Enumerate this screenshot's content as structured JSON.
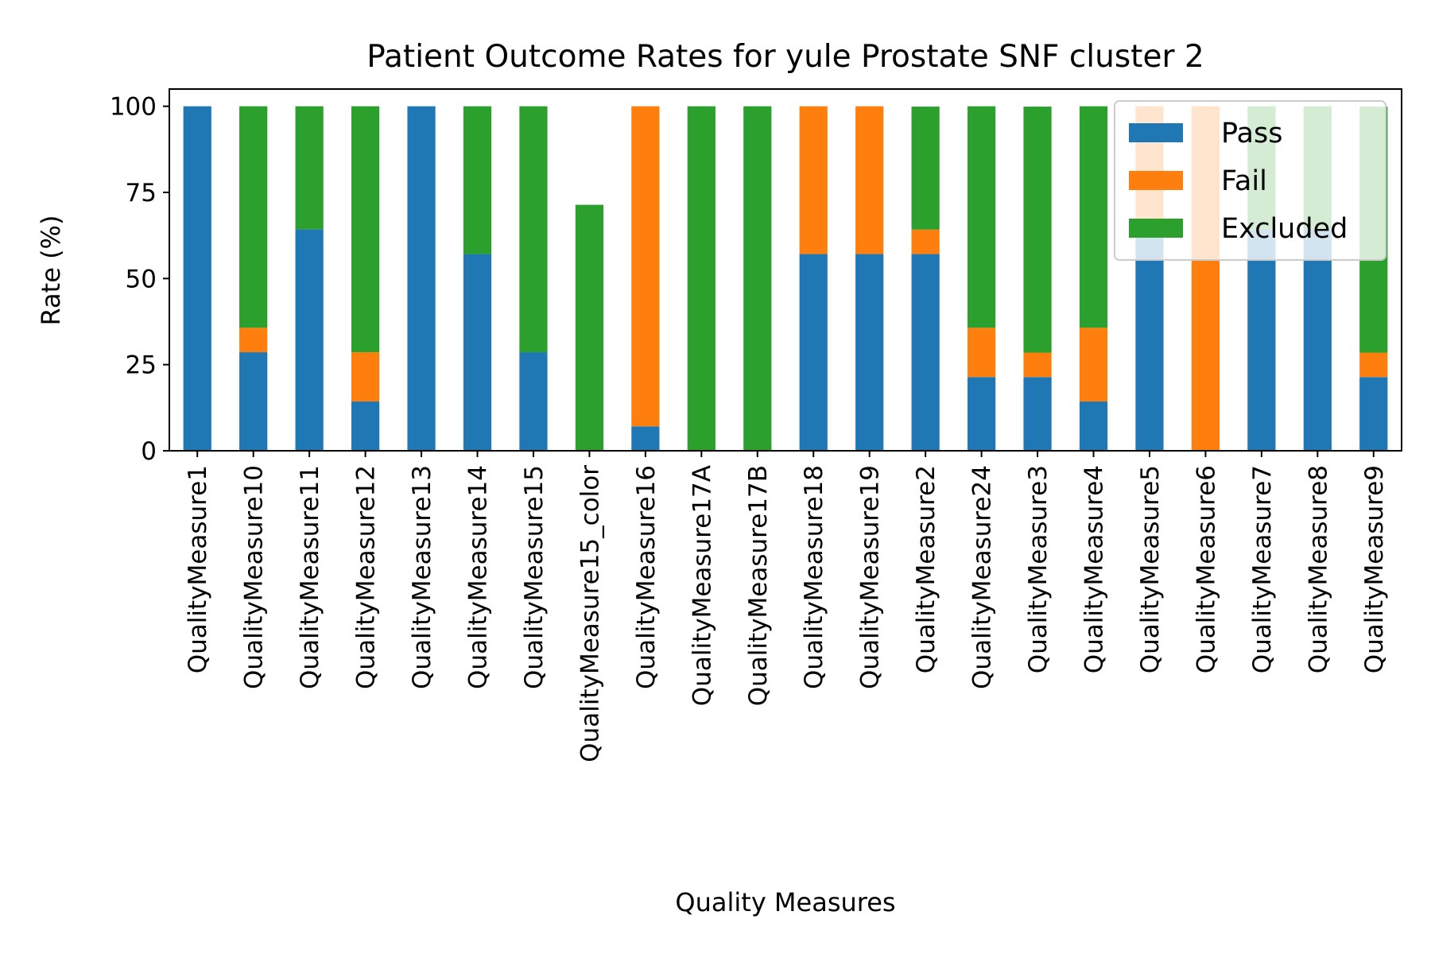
{
  "chart_data": {
    "type": "bar",
    "stacked": true,
    "title": "Patient Outcome Rates for yule Prostate SNF cluster 2",
    "xlabel": "Quality Measures",
    "ylabel": "Rate (%)",
    "ylim": [
      0,
      105
    ],
    "yticks": [
      0,
      25,
      50,
      75,
      100
    ],
    "grid": false,
    "legend_position": "top-right",
    "categories": [
      "QualityMeasure1",
      "QualityMeasure10",
      "QualityMeasure11",
      "QualityMeasure12",
      "QualityMeasure13",
      "QualityMeasure14",
      "QualityMeasure15",
      "QualityMeasure15_color",
      "QualityMeasure16",
      "QualityMeasure17A",
      "QualityMeasure17B",
      "QualityMeasure18",
      "QualityMeasure19",
      "QualityMeasure2",
      "QualityMeasure24",
      "QualityMeasure3",
      "QualityMeasure4",
      "QualityMeasure5",
      "QualityMeasure6",
      "QualityMeasure7",
      "QualityMeasure8",
      "QualityMeasure9"
    ],
    "series": [
      {
        "name": "Pass",
        "color": "#1f77b4",
        "values": [
          100,
          28.6,
          64.3,
          14.3,
          100,
          57.1,
          28.6,
          0,
          7.1,
          0,
          0,
          57.1,
          57.1,
          57.1,
          21.4,
          21.4,
          14.3,
          64.3,
          0,
          64.3,
          64.3,
          21.4
        ]
      },
      {
        "name": "Fail",
        "color": "#ff7f0e",
        "values": [
          0,
          7.1,
          0,
          14.3,
          0,
          0,
          0,
          0,
          92.9,
          0,
          0,
          42.9,
          42.9,
          7.1,
          14.3,
          7.1,
          21.4,
          35.7,
          100,
          0,
          0,
          7.1
        ]
      },
      {
        "name": "Excluded",
        "color": "#2ca02c",
        "values": [
          0,
          64.3,
          35.7,
          71.4,
          0,
          42.9,
          71.4,
          71.4,
          0,
          100,
          100,
          0,
          0,
          35.7,
          64.3,
          71.4,
          64.3,
          0,
          0,
          35.7,
          35.7,
          71.4
        ]
      }
    ]
  }
}
